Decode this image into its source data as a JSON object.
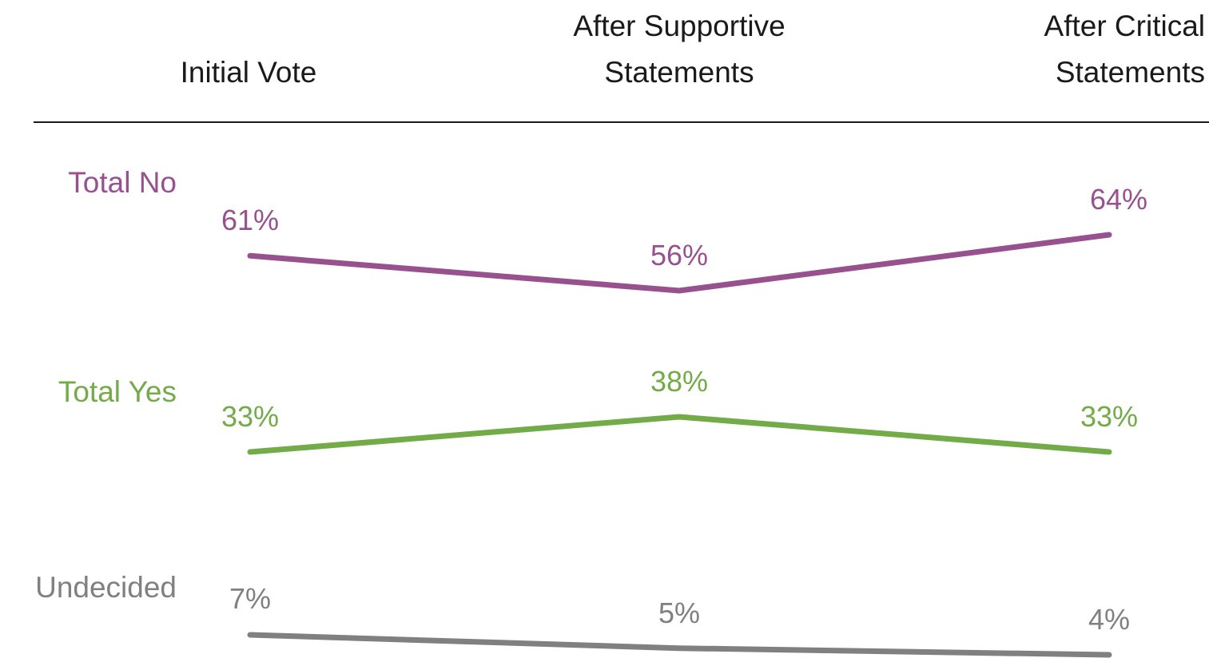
{
  "chart_data": {
    "type": "line",
    "categories": [
      [
        "Initial Vote"
      ],
      [
        "After Supportive",
        "Statements"
      ],
      [
        "After Critical",
        "Statements"
      ]
    ],
    "series": [
      {
        "name": "Total No",
        "values": [
          61,
          56,
          64
        ],
        "labels": [
          "61%",
          "56%",
          "64%"
        ],
        "color": "#98518f"
      },
      {
        "name": "Total Yes",
        "values": [
          33,
          38,
          33
        ],
        "labels": [
          "33%",
          "38%",
          "33%"
        ],
        "color": "#72ab48"
      },
      {
        "name": "Undecided",
        "values": [
          7,
          5,
          4
        ],
        "labels": [
          "7%",
          "5%",
          "4%"
        ],
        "color": "#808080"
      }
    ],
    "value_unit": "%",
    "ylim": [
      0,
      70
    ],
    "grid": false,
    "legend": "left"
  }
}
